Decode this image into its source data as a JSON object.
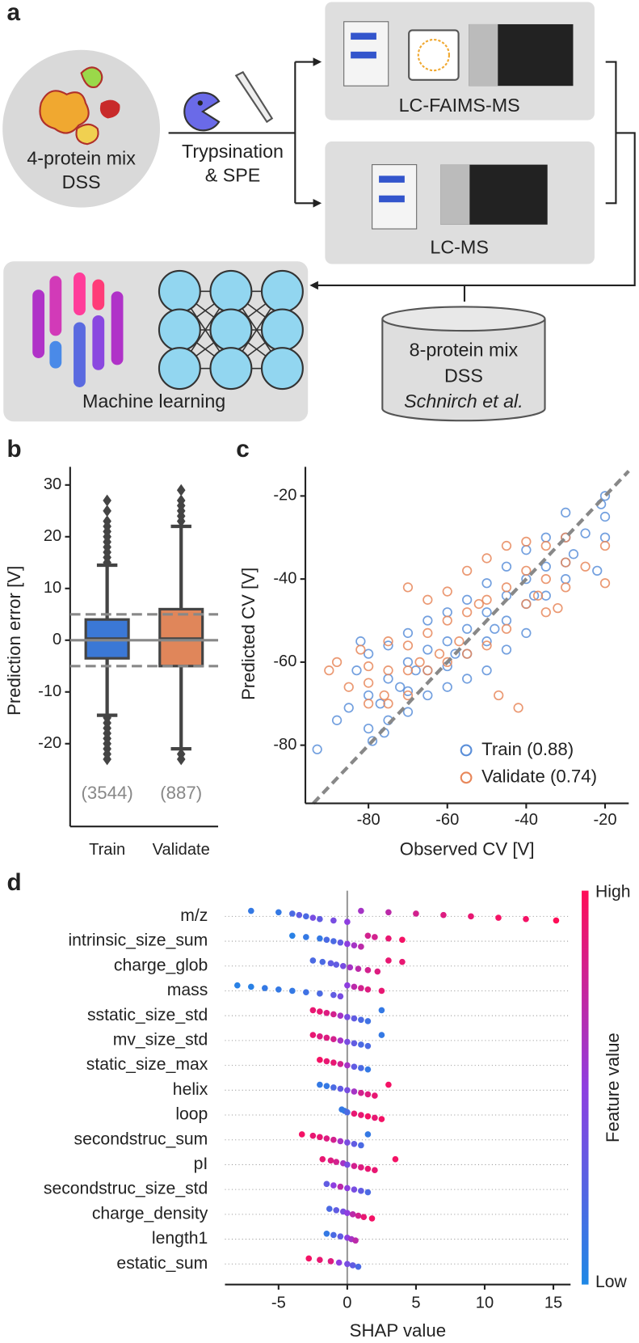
{
  "panel_labels": [
    "a",
    "b",
    "c",
    "d"
  ],
  "diagram": {
    "sample": [
      "4-protein mix",
      "DSS"
    ],
    "digest": [
      "Trypsination",
      "& SPE"
    ],
    "method_top": "LC-FAIMS-MS",
    "method_bottom": "LC-MS",
    "ml": "Machine learning",
    "external": [
      "8-protein mix",
      "DSS",
      "Schnirch et al."
    ]
  },
  "chart_data": [
    {
      "type": "box",
      "ylabel": "Prediction error [V]",
      "categories": [
        "Train",
        "Validate"
      ],
      "count_labels": [
        "(3544)",
        "(887)"
      ],
      "ylim": [
        -36,
        33.5
      ],
      "yticks": [
        -20,
        -10,
        0,
        10,
        20,
        30
      ],
      "reference_lines": [
        {
          "value": -5,
          "dashed": true
        },
        {
          "value": 0,
          "dashed": false
        },
        {
          "value": 5,
          "dashed": true
        }
      ],
      "boxes": [
        {
          "color": "#3b78d6",
          "whisker_low": -14.5,
          "q1": -3.5,
          "median": 0.3,
          "q3": 4,
          "whisker_high": 14.5,
          "outliers": [
            15,
            16,
            17,
            18,
            19,
            20,
            21,
            22,
            23,
            25,
            27,
            -15,
            -16,
            -17,
            -18,
            -19,
            -20,
            -21,
            -22,
            -23
          ]
        },
        {
          "color": "#e0865a",
          "whisker_low": -21,
          "q1": -5,
          "median": 0.3,
          "q3": 6,
          "whisker_high": 22,
          "outliers": [
            23,
            24,
            25,
            26,
            27,
            29,
            -22,
            -23
          ]
        }
      ]
    },
    {
      "type": "scatter",
      "xlabel": "Observed CV [V]",
      "ylabel": "Predicted CV [V]",
      "xlim": [
        -96,
        -14
      ],
      "ylim": [
        -94,
        -13
      ],
      "xticks": [
        -80,
        -60,
        -40,
        -20
      ],
      "yticks": [
        -80,
        -60,
        -40,
        -20
      ],
      "diagonal": true,
      "legend": "lower right",
      "series": [
        {
          "name": "Train (0.88)",
          "color": "#5b8fd9",
          "x": [
            -93,
            -88,
            -85,
            -83,
            -82,
            -80,
            -80,
            -80,
            -79,
            -77,
            -76,
            -75,
            -75,
            -75,
            -72,
            -70,
            -70,
            -70,
            -70,
            -68,
            -65,
            -65,
            -65,
            -65,
            -60,
            -60,
            -60,
            -60,
            -58,
            -55,
            -55,
            -55,
            -55,
            -50,
            -50,
            -50,
            -50,
            -48,
            -45,
            -45,
            -45,
            -45,
            -40,
            -40,
            -40,
            -40,
            -38,
            -35,
            -35,
            -35,
            -30,
            -30,
            -30,
            -30,
            -28,
            -25,
            -22,
            -21,
            -20,
            -20,
            -20
          ],
          "values": [
            -81,
            -74,
            -71,
            -62,
            -55,
            -58,
            -68,
            -76,
            -79,
            -70,
            -77,
            -56,
            -64,
            -74,
            -66,
            -53,
            -60,
            -67,
            -72,
            -62,
            -50,
            -57,
            -62,
            -68,
            -48,
            -55,
            -61,
            -66,
            -58,
            -45,
            -52,
            -58,
            -64,
            -41,
            -48,
            -55,
            -62,
            -52,
            -37,
            -44,
            -50,
            -57,
            -33,
            -40,
            -46,
            -53,
            -44,
            -30,
            -37,
            -44,
            -24,
            -30,
            -36,
            -40,
            -34,
            -29,
            -38,
            -22,
            -20,
            -25,
            -30
          ]
        },
        {
          "name": "Validate (0.74)",
          "color": "#e8875a",
          "x": [
            -90,
            -88,
            -85,
            -82,
            -80,
            -80,
            -80,
            -76,
            -75,
            -75,
            -75,
            -70,
            -70,
            -70,
            -70,
            -67,
            -65,
            -65,
            -65,
            -62,
            -60,
            -60,
            -60,
            -57,
            -55,
            -55,
            -55,
            -52,
            -50,
            -50,
            -50,
            -47,
            -45,
            -45,
            -45,
            -42,
            -40,
            -40,
            -40,
            -37,
            -35,
            -35,
            -35,
            -32,
            -30,
            -30,
            -30,
            -25,
            -20,
            -20
          ],
          "values": [
            -62,
            -60,
            -66,
            -57,
            -61,
            -65,
            -70,
            -68,
            -55,
            -62,
            -70,
            -42,
            -56,
            -62,
            -68,
            -60,
            -45,
            -53,
            -62,
            -58,
            -43,
            -50,
            -60,
            -55,
            -38,
            -48,
            -58,
            -46,
            -35,
            -45,
            -56,
            -68,
            -32,
            -42,
            -52,
            -71,
            -31,
            -38,
            -46,
            -44,
            -32,
            -40,
            -48,
            -47,
            -30,
            -36,
            -42,
            -37,
            -32,
            -41
          ]
        }
      ]
    },
    {
      "type": "beeswarm",
      "xlabel": "SHAP value",
      "xlim": [
        -8.9,
        16.25
      ],
      "xticks": [
        -5,
        0,
        5,
        10,
        15
      ],
      "colorbar": {
        "label": "Feature value",
        "high_label": "High",
        "low_label": "Low",
        "colors": [
          "#1e88e5",
          "#8e3ee0",
          "#ff0d57"
        ]
      },
      "features": [
        {
          "name": "m/z",
          "values": [
            -7,
            -5,
            -4,
            -3.5,
            -3,
            -2.5,
            -2,
            -1,
            0,
            1,
            3,
            5,
            7,
            9,
            11,
            13,
            15.2
          ],
          "feature_values": [
            0.1,
            0.1,
            0.2,
            0.3,
            0.2,
            0.4,
            0.3,
            0.4,
            0.5,
            0.6,
            0.7,
            0.8,
            0.85,
            0.9,
            0.95,
            0.95,
            1
          ]
        },
        {
          "name": "intrinsic_size_sum",
          "values": [
            -4,
            -3,
            -2,
            -1.5,
            -1,
            -0.5,
            0,
            0.5,
            1,
            1.5,
            2,
            3,
            4
          ],
          "feature_values": [
            0.05,
            0.1,
            0.1,
            0.2,
            0.2,
            0.3,
            0.5,
            0.6,
            0.7,
            0.8,
            0.8,
            0.9,
            0.95
          ]
        },
        {
          "name": "charge_glob",
          "values": [
            -2.5,
            -1.8,
            -1.2,
            -0.8,
            -0.3,
            0.2,
            0.8,
            1.5,
            2.2,
            3,
            4
          ],
          "feature_values": [
            0.2,
            0.2,
            0.3,
            0.3,
            0.4,
            0.6,
            0.7,
            0.8,
            0.85,
            0.9,
            0.9
          ]
        },
        {
          "name": "mass",
          "values": [
            -8,
            -7,
            -6,
            -5,
            -4,
            -3,
            -2,
            -1,
            -0.5,
            0,
            0.5,
            1,
            1.5,
            2.5
          ],
          "feature_values": [
            0.05,
            0.05,
            0.1,
            0.1,
            0.1,
            0.15,
            0.2,
            0.3,
            0.4,
            0.5,
            0.7,
            0.8,
            0.85,
            0.9
          ]
        },
        {
          "name": "sstatic_size_std",
          "values": [
            -2.5,
            -2,
            -1.5,
            -1,
            -0.5,
            0,
            0.5,
            1,
            1.5,
            2.5
          ],
          "feature_values": [
            0.9,
            0.9,
            0.85,
            0.8,
            0.6,
            0.4,
            0.3,
            0.2,
            0.15,
            0.1
          ]
        },
        {
          "name": "mv_size_std",
          "values": [
            -2.5,
            -2,
            -1.5,
            -1,
            -0.5,
            0,
            0.5,
            1,
            1.5,
            2.5
          ],
          "feature_values": [
            0.9,
            0.85,
            0.85,
            0.8,
            0.6,
            0.4,
            0.3,
            0.2,
            0.2,
            0.1
          ]
        },
        {
          "name": "static_size_max",
          "values": [
            -2,
            -1.5,
            -1,
            -0.5,
            0,
            0.5,
            1,
            1.5
          ],
          "feature_values": [
            0.95,
            0.9,
            0.9,
            0.8,
            0.6,
            0.3,
            0.2,
            0.1
          ]
        },
        {
          "name": "helix",
          "values": [
            -2,
            -1.5,
            -1,
            -0.5,
            0,
            0.5,
            1,
            1.5,
            2,
            3
          ],
          "feature_values": [
            0.1,
            0.1,
            0.2,
            0.3,
            0.4,
            0.6,
            0.8,
            0.85,
            0.9,
            0.95
          ]
        },
        {
          "name": "loop",
          "values": [
            -0.4,
            -0.2,
            0,
            0.5,
            1,
            1.5,
            2,
            2.5
          ],
          "feature_values": [
            0.1,
            0.1,
            0.2,
            0.9,
            0.9,
            0.95,
            0.9,
            0.95
          ]
        },
        {
          "name": "secondstruc_sum",
          "values": [
            -3.3,
            -2.5,
            -2,
            -1.5,
            -1,
            -0.5,
            0,
            0.5,
            1,
            1.5
          ],
          "feature_values": [
            0.95,
            0.9,
            0.9,
            0.85,
            0.8,
            0.6,
            0.4,
            0.3,
            0.2,
            0.1
          ]
        },
        {
          "name": "pI",
          "values": [
            -1.8,
            -1.2,
            -0.8,
            -0.3,
            0,
            0.5,
            1,
            1.5,
            2,
            3.5
          ],
          "feature_values": [
            0.9,
            0.85,
            0.8,
            0.6,
            0.4,
            0.8,
            0.85,
            0.9,
            0.9,
            0.95
          ]
        },
        {
          "name": "secondstruc_size_std",
          "values": [
            -1.5,
            -1,
            -0.5,
            0,
            0.5,
            1,
            1.5
          ],
          "feature_values": [
            0.3,
            0.5,
            0.7,
            0.5,
            0.4,
            0.3,
            0.2
          ]
        },
        {
          "name": "charge_density",
          "values": [
            -1.3,
            -0.8,
            -0.3,
            0,
            0.4,
            0.8,
            1.2,
            1.8
          ],
          "feature_values": [
            0.2,
            0.3,
            0.4,
            0.5,
            0.7,
            0.8,
            0.9,
            0.95
          ]
        },
        {
          "name": "length1",
          "values": [
            -1.5,
            -1,
            -0.5,
            0,
            0.3,
            0.6
          ],
          "feature_values": [
            0.1,
            0.2,
            0.3,
            0.5,
            0.6,
            0.7
          ]
        },
        {
          "name": "estatic_sum",
          "values": [
            -2.8,
            -2,
            -1.2,
            -0.6,
            0,
            0.4,
            0.8
          ],
          "feature_values": [
            0.95,
            0.9,
            0.85,
            0.5,
            0.4,
            0.3,
            0.2
          ]
        }
      ]
    }
  ]
}
